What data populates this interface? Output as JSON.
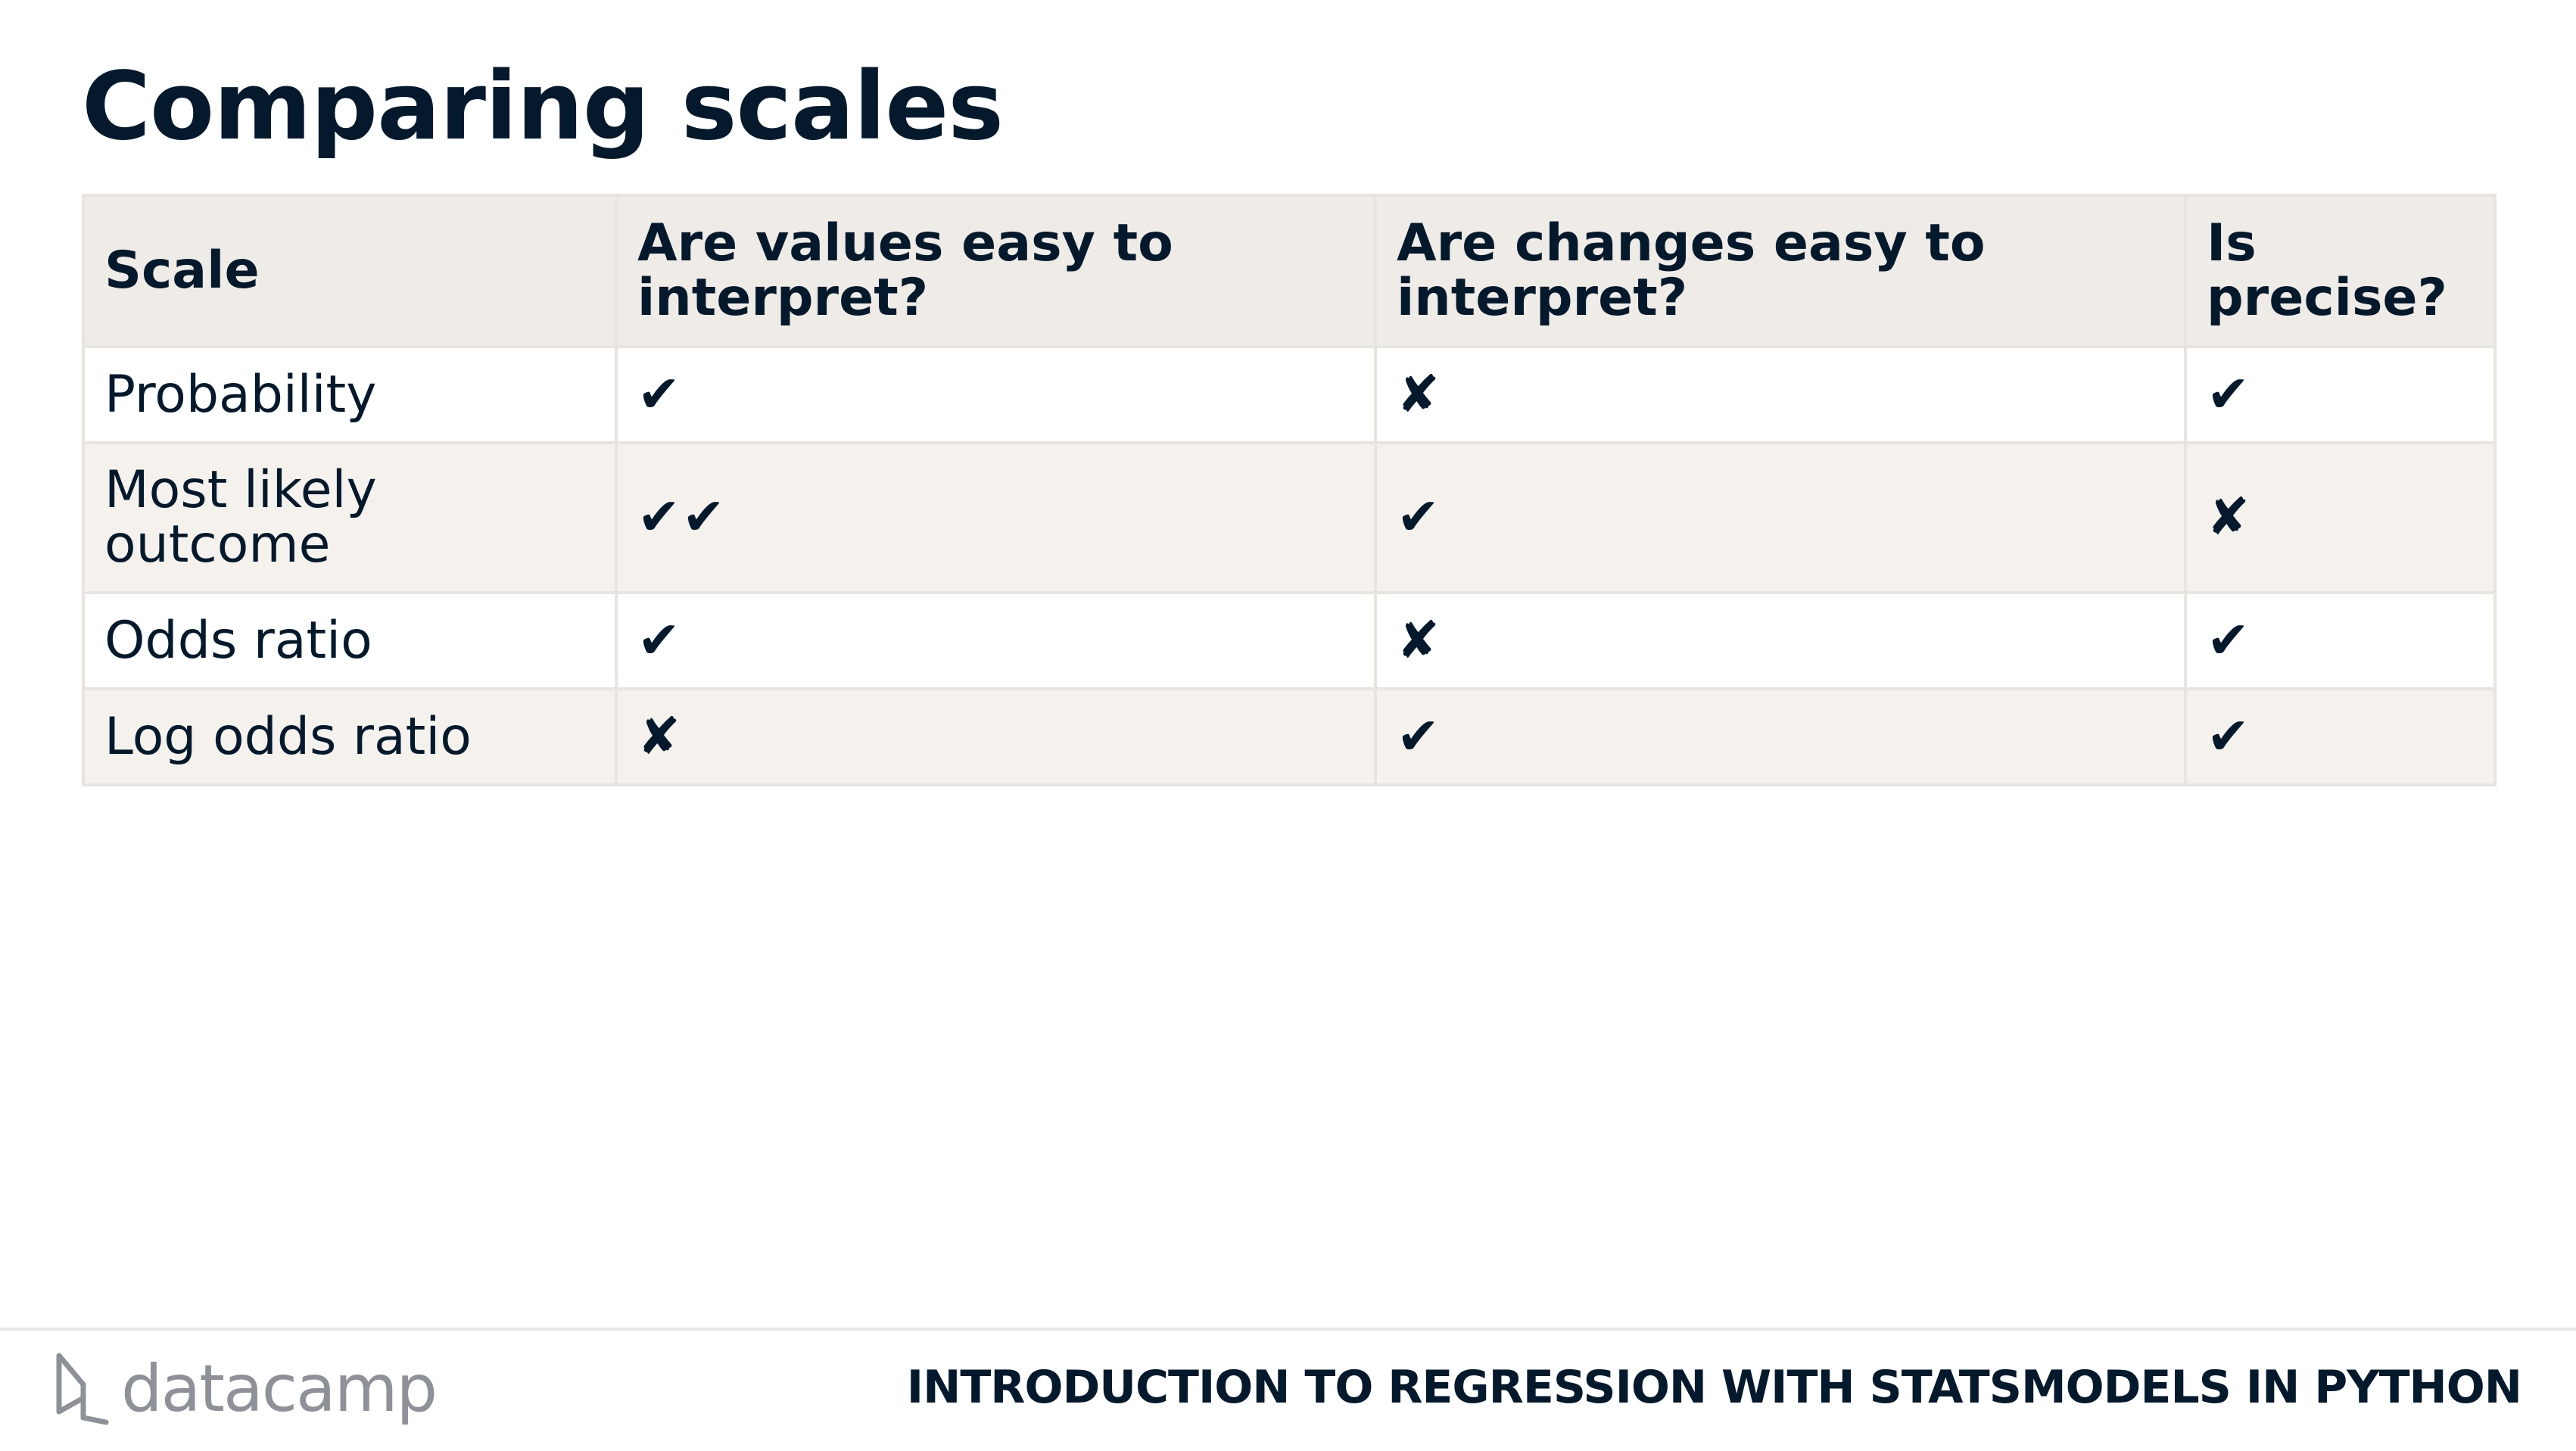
{
  "slide": {
    "title": "Comparing scales"
  },
  "table": {
    "headers": [
      {
        "lines": [
          "Scale"
        ]
      },
      {
        "lines": [
          "Are values easy to",
          "interpret?"
        ]
      },
      {
        "lines": [
          "Are changes easy to",
          "interpret?"
        ]
      },
      {
        "lines": [
          "Is",
          "precise?"
        ]
      }
    ],
    "rows": [
      {
        "scale_lines": [
          "Probability"
        ],
        "values_easy": "✔",
        "changes_easy": "✘",
        "precise": "✔"
      },
      {
        "scale_lines": [
          "Most likely",
          "outcome"
        ],
        "values_easy": "✔✔",
        "changes_easy": "✔",
        "precise": "✘"
      },
      {
        "scale_lines": [
          "Odds ratio"
        ],
        "values_easy": "✔",
        "changes_easy": "✘",
        "precise": "✔"
      },
      {
        "scale_lines": [
          "Log odds ratio"
        ],
        "values_easy": "✘",
        "changes_easy": "✔",
        "precise": "✔"
      }
    ]
  },
  "footer": {
    "logo_text": "datacamp",
    "logo_icon": "datacamp-logo-icon",
    "course_title": "INTRODUCTION TO REGRESSION WITH STATSMODELS IN PYTHON"
  },
  "colors": {
    "text": "#05192d",
    "header_bg": "#efebe6",
    "row_alt_bg": "#f5f2ed",
    "border": "#e8e4df",
    "logo_gray": "#8f9198"
  }
}
